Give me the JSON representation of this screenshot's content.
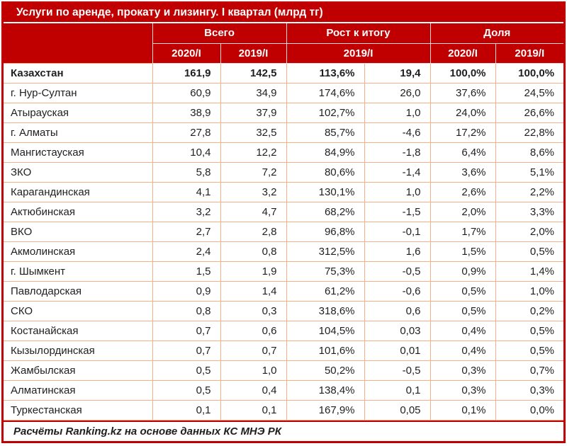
{
  "title": "Услуги по аренде, прокату и лизингу. I квартал (млрд тг)",
  "header": {
    "groups": [
      {
        "label": "Всего"
      },
      {
        "label": "Рост к итогу"
      },
      {
        "label": "Доля"
      }
    ],
    "subheaders": [
      "2020/I",
      "2019/I",
      "2019/I",
      "2020/I",
      "2019/I"
    ]
  },
  "footer": "Расчёты Ranking.kz на основе данных КС МНЭ РК",
  "colors": {
    "accent_red": "#c00000",
    "body_grid": "#f5b183",
    "header_grid": "#f2dcdb",
    "text": "#1f1f1f",
    "header_text": "#ffffff"
  },
  "chart_data": {
    "type": "table",
    "title": "Услуги по аренде, прокату и лизингу. I квартал (млрд тг)",
    "column_groups": [
      "Всего",
      "Всего",
      "Рост к итогу",
      "Рост к итогу",
      "Доля",
      "Доля"
    ],
    "column_subheaders": [
      "2020/I",
      "2019/I",
      "2019/I",
      "2019/I",
      "2020/I",
      "2019/I"
    ],
    "rows": [
      {
        "region": "Казахстан",
        "values": [
          "161,9",
          "142,5",
          "113,6%",
          "19,4",
          "100,0%",
          "100,0%"
        ],
        "bold": true
      },
      {
        "region": "г. Нур-Султан",
        "values": [
          "60,9",
          "34,9",
          "174,6%",
          "26,0",
          "37,6%",
          "24,5%"
        ],
        "bold": false
      },
      {
        "region": "Атырауская",
        "values": [
          "38,9",
          "37,9",
          "102,7%",
          "1,0",
          "24,0%",
          "26,6%"
        ],
        "bold": false
      },
      {
        "region": "г. Алматы",
        "values": [
          "27,8",
          "32,5",
          "85,7%",
          "-4,6",
          "17,2%",
          "22,8%"
        ],
        "bold": false
      },
      {
        "region": "Мангистауская",
        "values": [
          "10,4",
          "12,2",
          "84,9%",
          "-1,8",
          "6,4%",
          "8,6%"
        ],
        "bold": false
      },
      {
        "region": "ЗКО",
        "values": [
          "5,8",
          "7,2",
          "80,6%",
          "-1,4",
          "3,6%",
          "5,1%"
        ],
        "bold": false
      },
      {
        "region": "Карагандинская",
        "values": [
          "4,1",
          "3,2",
          "130,1%",
          "1,0",
          "2,6%",
          "2,2%"
        ],
        "bold": false
      },
      {
        "region": "Актюбинская",
        "values": [
          "3,2",
          "4,7",
          "68,2%",
          "-1,5",
          "2,0%",
          "3,3%"
        ],
        "bold": false
      },
      {
        "region": "ВКО",
        "values": [
          "2,7",
          "2,8",
          "96,8%",
          "-0,1",
          "1,7%",
          "2,0%"
        ],
        "bold": false
      },
      {
        "region": "Акмолинская",
        "values": [
          "2,4",
          "0,8",
          "312,5%",
          "1,6",
          "1,5%",
          "0,5%"
        ],
        "bold": false
      },
      {
        "region": "г. Шымкент",
        "values": [
          "1,5",
          "1,9",
          "75,3%",
          "-0,5",
          "0,9%",
          "1,4%"
        ],
        "bold": false
      },
      {
        "region": "Павлодарская",
        "values": [
          "0,9",
          "1,4",
          "61,2%",
          "-0,6",
          "0,5%",
          "1,0%"
        ],
        "bold": false
      },
      {
        "region": "СКО",
        "values": [
          "0,8",
          "0,3",
          "318,6%",
          "0,6",
          "0,5%",
          "0,2%"
        ],
        "bold": false
      },
      {
        "region": "Костанайская",
        "values": [
          "0,7",
          "0,6",
          "104,5%",
          "0,03",
          "0,4%",
          "0,5%"
        ],
        "bold": false
      },
      {
        "region": "Кызылординская",
        "values": [
          "0,7",
          "0,7",
          "101,6%",
          "0,01",
          "0,4%",
          "0,5%"
        ],
        "bold": false
      },
      {
        "region": "Жамбылская",
        "values": [
          "0,5",
          "1,0",
          "50,2%",
          "-0,5",
          "0,3%",
          "0,7%"
        ],
        "bold": false
      },
      {
        "region": "Алматинская",
        "values": [
          "0,5",
          "0,4",
          "138,4%",
          "0,1",
          "0,3%",
          "0,3%"
        ],
        "bold": false
      },
      {
        "region": "Туркестанская",
        "values": [
          "0,1",
          "0,1",
          "167,9%",
          "0,05",
          "0,1%",
          "0,0%"
        ],
        "bold": false
      }
    ]
  }
}
